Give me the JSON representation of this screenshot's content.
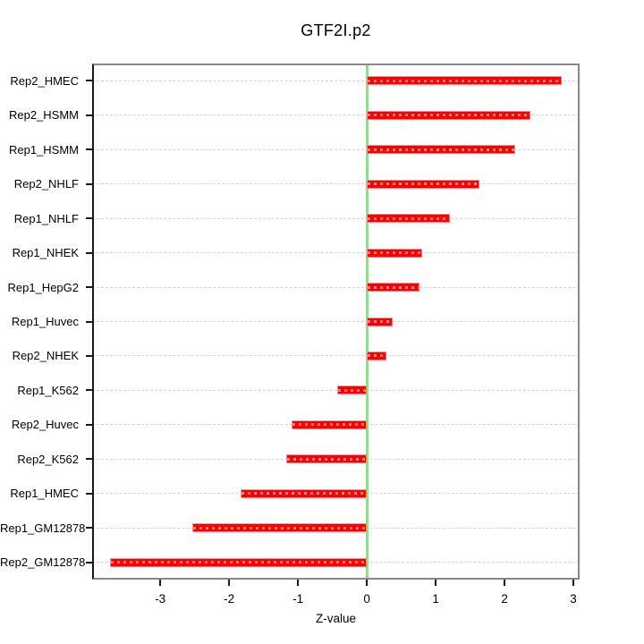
{
  "title": "GTF2I.p2",
  "chart_data": {
    "type": "bar",
    "orientation": "horizontal",
    "title": "GTF2I.p2",
    "xlabel": "Z-value",
    "ylabel": "",
    "categories": [
      "Rep2_HMEC",
      "Rep2_HSMM",
      "Rep1_HSMM",
      "Rep2_NHLF",
      "Rep1_NHLF",
      "Rep1_NHEK",
      "Rep1_HepG2",
      "Rep1_Huvec",
      "Rep2_NHEK",
      "Rep1_K562",
      "Rep2_Huvec",
      "Rep2_K562",
      "Rep1_HMEC",
      "Rep1_GM12878",
      "Rep2_GM12878"
    ],
    "values": [
      2.83,
      2.37,
      2.16,
      1.63,
      1.21,
      0.81,
      0.76,
      0.37,
      0.29,
      -0.43,
      -1.09,
      -1.17,
      -1.83,
      -2.53,
      -3.73
    ],
    "x_ticks": [
      -3,
      -2,
      -1,
      0,
      1,
      2,
      3
    ],
    "xlim": [
      -3.99,
      3.09
    ],
    "grid": "horizontal dashed gridline per category",
    "zero_reference_line": 0,
    "legend": "none",
    "colors": {
      "bar": "#fa0000",
      "bar_edge": "#ff8d8d",
      "bar_dash_overlay": "rgba(255,255,255,0.5)",
      "zero_line": "#66fb66",
      "gridline": "#d4d4d4",
      "box_border": "#878787",
      "axis": "#1a1a1a",
      "text": "#000000",
      "background": "#ffffff"
    }
  }
}
